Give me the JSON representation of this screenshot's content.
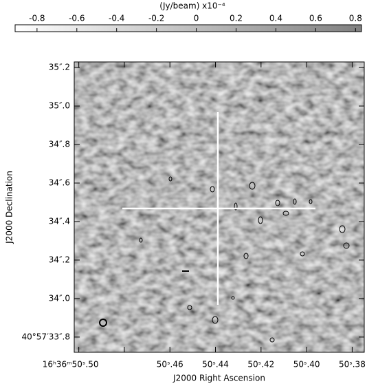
{
  "chart_data": {
    "type": "image",
    "xlabel": "J2000 Right Ascension",
    "ylabel": "J2000 Declination",
    "xlim": [
      50.502,
      50.3747
    ],
    "ylim": [
      33.721,
      35.229
    ],
    "xticks": [
      {
        "value": 50.5,
        "label": "16ʰ36ᵐ50ˢ.50"
      },
      {
        "value": 50.48,
        "label": null
      },
      {
        "value": 50.46,
        "label": "50ˢ.46"
      },
      {
        "value": 50.44,
        "label": "50ˢ.44"
      },
      {
        "value": 50.42,
        "label": "50ˢ.42"
      },
      {
        "value": 50.4,
        "label": "50ˢ.40"
      },
      {
        "value": 50.38,
        "label": "50ˢ.38"
      }
    ],
    "yticks": [
      {
        "value": 35.2,
        "label": "35″.2"
      },
      {
        "value": 35.0,
        "label": "35″.0"
      },
      {
        "value": 34.8,
        "label": "34″.8"
      },
      {
        "value": 34.6,
        "label": "34″.6"
      },
      {
        "value": 34.4,
        "label": "34″.4"
      },
      {
        "value": 34.2,
        "label": "34″.2"
      },
      {
        "value": 34.0,
        "label": "34″.0"
      },
      {
        "value": 33.8,
        "label": "40°57′33″.8"
      }
    ],
    "colorbar": {
      "label": "(Jy/beam)  x10⁻⁴",
      "lim": [
        -0.91,
        0.83
      ],
      "ticks": [
        -0.8,
        -0.6,
        -0.4,
        -0.2,
        0,
        0.2,
        0.4,
        0.6,
        0.8
      ],
      "colors": [
        "#ffffff",
        "#808080"
      ]
    }
  }
}
